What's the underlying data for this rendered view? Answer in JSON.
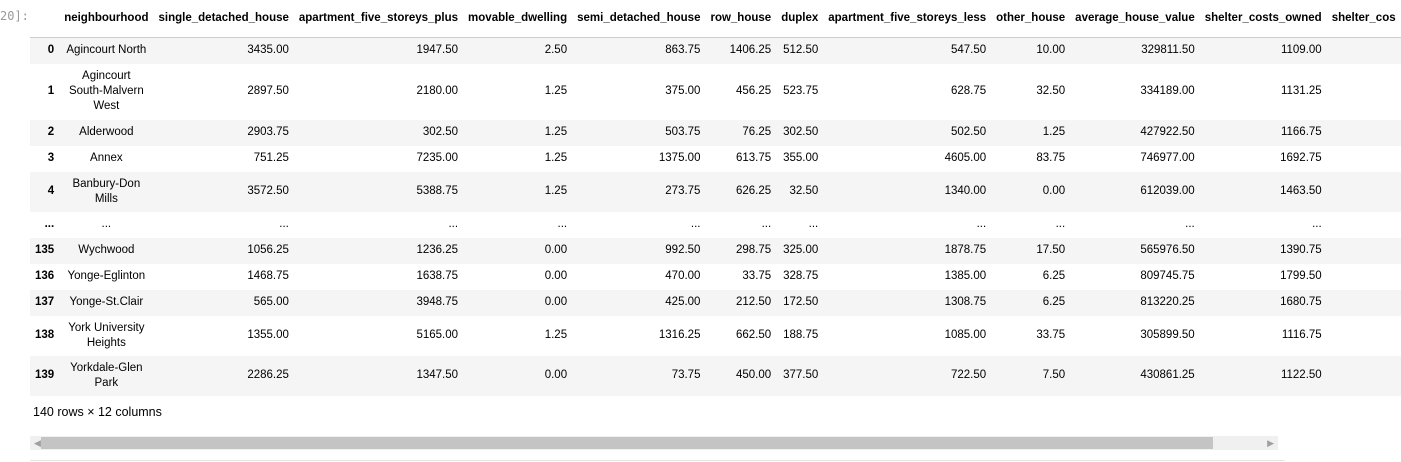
{
  "prompt": "20]:",
  "table": {
    "columns": [
      "",
      "neighbourhood",
      "single_detached_house",
      "apartment_five_storeys_plus",
      "movable_dwelling",
      "semi_detached_house",
      "row_house",
      "duplex",
      "apartment_five_storeys_less",
      "other_house",
      "average_house_value",
      "shelter_costs_owned",
      "shelter_cos"
    ],
    "rows": [
      [
        "0",
        "Agincourt North",
        "3435.00",
        "1947.50",
        "2.50",
        "863.75",
        "1406.25",
        "512.50",
        "547.50",
        "10.00",
        "329811.50",
        "1109.00",
        ""
      ],
      [
        "1",
        "Agincourt South-Malvern West",
        "2897.50",
        "2180.00",
        "1.25",
        "375.00",
        "456.25",
        "523.75",
        "628.75",
        "32.50",
        "334189.00",
        "1131.25",
        ""
      ],
      [
        "2",
        "Alderwood",
        "2903.75",
        "302.50",
        "1.25",
        "503.75",
        "76.25",
        "302.50",
        "502.50",
        "1.25",
        "427922.50",
        "1166.75",
        ""
      ],
      [
        "3",
        "Annex",
        "751.25",
        "7235.00",
        "1.25",
        "1375.00",
        "613.75",
        "355.00",
        "4605.00",
        "83.75",
        "746977.00",
        "1692.75",
        ""
      ],
      [
        "4",
        "Banbury-Don Mills",
        "3572.50",
        "5388.75",
        "1.25",
        "273.75",
        "626.25",
        "32.50",
        "1340.00",
        "0.00",
        "612039.00",
        "1463.50",
        ""
      ],
      [
        "...",
        "...",
        "...",
        "...",
        "...",
        "...",
        "...",
        "...",
        "...",
        "...",
        "...",
        "...",
        ""
      ],
      [
        "135",
        "Wychwood",
        "1056.25",
        "1236.25",
        "0.00",
        "992.50",
        "298.75",
        "325.00",
        "1878.75",
        "17.50",
        "565976.50",
        "1390.75",
        ""
      ],
      [
        "136",
        "Yonge-Eglinton",
        "1468.75",
        "1638.75",
        "0.00",
        "470.00",
        "33.75",
        "328.75",
        "1385.00",
        "6.25",
        "809745.75",
        "1799.50",
        ""
      ],
      [
        "137",
        "Yonge-St.Clair",
        "565.00",
        "3948.75",
        "0.00",
        "425.00",
        "212.50",
        "172.50",
        "1308.75",
        "6.25",
        "813220.25",
        "1680.75",
        ""
      ],
      [
        "138",
        "York University Heights",
        "1355.00",
        "5165.00",
        "1.25",
        "1316.25",
        "662.50",
        "188.75",
        "1085.00",
        "33.75",
        "305899.50",
        "1116.75",
        ""
      ],
      [
        "139",
        "Yorkdale-Glen Park",
        "2286.25",
        "1347.50",
        "0.00",
        "73.75",
        "450.00",
        "377.50",
        "722.50",
        "7.50",
        "430861.25",
        "1122.50",
        ""
      ]
    ]
  },
  "summary": "140 rows × 12 columns",
  "scrollbar": {
    "left_arrow": "◀",
    "right_arrow": "▶"
  }
}
